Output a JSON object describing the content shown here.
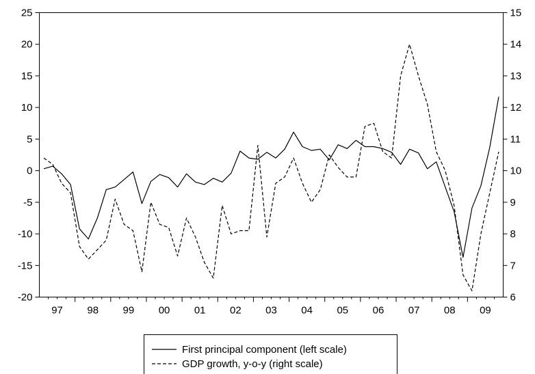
{
  "chart_data": {
    "type": "line",
    "title": "",
    "xlabel": "",
    "ylabel": "",
    "grid": false,
    "legend_placement": "bottom-center",
    "x_periods": 52,
    "x_start": "1997Q1",
    "x_tick_labels": [
      "97",
      "98",
      "99",
      "00",
      "01",
      "02",
      "03",
      "04",
      "05",
      "06",
      "07",
      "08",
      "09"
    ],
    "ylim_left": [
      -20,
      25
    ],
    "yticks_left": [
      "25",
      "20",
      "15",
      "10",
      "5",
      "0",
      "-5",
      "-10",
      "-15",
      "-20"
    ],
    "ylim_right": [
      6,
      15
    ],
    "yticks_right": [
      "15",
      "14",
      "13",
      "12",
      "11",
      "10",
      "9",
      "8",
      "7",
      "6"
    ],
    "series": [
      {
        "name": "First principal component (left scale)",
        "axis": "left",
        "style": "solid",
        "color": "#000000",
        "values": [
          0.3,
          0.7,
          -0.5,
          -2.2,
          -9.2,
          -10.8,
          -7.5,
          -3.0,
          -2.6,
          -1.4,
          -0.2,
          -5.2,
          -1.7,
          -0.6,
          -1.1,
          -2.6,
          -0.5,
          -1.8,
          -2.2,
          -1.2,
          -1.8,
          -0.4,
          3.1,
          2.0,
          1.8,
          2.9,
          2.0,
          3.4,
          6.1,
          3.8,
          3.2,
          3.4,
          1.7,
          4.1,
          3.5,
          4.8,
          3.8,
          3.8,
          3.5,
          2.9,
          1.0,
          3.4,
          2.8,
          0.3,
          1.4,
          -2.6,
          -6.5,
          -13.7,
          -5.9,
          -2.4,
          3.7,
          11.7
        ]
      },
      {
        "name": "GDP growth, y-o-y (right scale)",
        "axis": "right",
        "style": "dashed",
        "color": "#000000",
        "values": [
          10.4,
          10.2,
          9.6,
          9.3,
          7.6,
          7.2,
          7.5,
          7.8,
          9.1,
          8.3,
          8.1,
          6.8,
          9.0,
          8.3,
          8.2,
          7.3,
          8.5,
          7.9,
          7.1,
          6.6,
          8.9,
          8.0,
          8.1,
          8.1,
          10.8,
          7.9,
          9.6,
          9.8,
          10.4,
          9.6,
          9.0,
          9.4,
          10.5,
          10.1,
          9.8,
          9.8,
          11.4,
          11.5,
          10.6,
          10.4,
          13.0,
          14.0,
          13.0,
          12.1,
          10.6,
          10.0,
          8.9,
          6.7,
          6.2,
          8.0,
          9.3,
          10.6
        ]
      }
    ]
  }
}
